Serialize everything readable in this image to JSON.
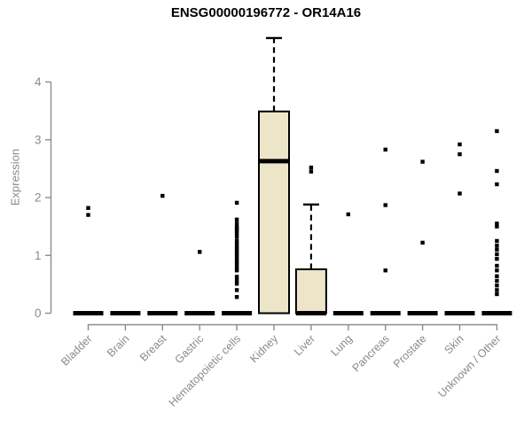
{
  "page": {
    "title": "ENSG00000196772 - OR14A16",
    "ylabel": "Expression"
  },
  "chart_data": {
    "type": "boxplot",
    "title": "ENSG00000196772 - OR14A16",
    "xlabel": "",
    "ylabel": "Expression",
    "ylim": [
      0,
      4
    ],
    "yticks": [
      0,
      1,
      2,
      3,
      4
    ],
    "grid": false,
    "legend": false,
    "colors": {
      "box_fill": "#ECE5C8",
      "box_border": "#000000",
      "median": "#000000",
      "whisker": "#000000",
      "outlier": "#000000",
      "axis": "#8C8C8C",
      "tick_text": "#8A8A8A",
      "title_text": "#000000"
    },
    "categories": [
      "Bladder",
      "Brain",
      "Breast",
      "Gastric",
      "Hematopoietic cells",
      "Kidney",
      "Liver",
      "Lung",
      "Pancreas",
      "Prostate",
      "Skin",
      "Unknown / Other"
    ],
    "series": [
      {
        "category": "Bladder",
        "q1": 0,
        "median": 0,
        "q3": 0,
        "whisker_low": 0,
        "whisker_high": 0,
        "outliers": [
          1.82,
          1.7
        ]
      },
      {
        "category": "Brain",
        "q1": 0,
        "median": 0,
        "q3": 0,
        "whisker_low": 0,
        "whisker_high": 0,
        "outliers": []
      },
      {
        "category": "Breast",
        "q1": 0,
        "median": 0,
        "q3": 0,
        "whisker_low": 0,
        "whisker_high": 0,
        "outliers": [
          2.03
        ]
      },
      {
        "category": "Gastric",
        "q1": 0,
        "median": 0,
        "q3": 0,
        "whisker_low": 0,
        "whisker_high": 0,
        "outliers": [
          1.06
        ]
      },
      {
        "category": "Hematopoietic cells",
        "q1": 0,
        "median": 0,
        "q3": 0,
        "whisker_low": 0,
        "whisker_high": 0,
        "outliers": [
          1.91,
          1.62,
          1.55,
          1.49,
          1.46,
          1.43,
          1.38,
          1.32,
          1.25,
          1.2,
          1.15,
          1.11,
          1.06,
          1.02,
          0.97,
          0.92,
          0.88,
          0.83,
          0.78,
          0.74,
          0.63,
          0.57,
          0.51,
          0.4,
          0.28
        ]
      },
      {
        "category": "Kidney",
        "q1": 0,
        "median": 2.63,
        "q3": 3.49,
        "whisker_low": 0,
        "whisker_high": 4.76,
        "outliers": []
      },
      {
        "category": "Liver",
        "q1": 0,
        "median": 0,
        "q3": 0.76,
        "whisker_low": 0,
        "whisker_high": 1.88,
        "outliers": [
          2.52,
          2.45
        ]
      },
      {
        "category": "Lung",
        "q1": 0,
        "median": 0,
        "q3": 0,
        "whisker_low": 0,
        "whisker_high": 0,
        "outliers": [
          1.71
        ]
      },
      {
        "category": "Pancreas",
        "q1": 0,
        "median": 0,
        "q3": 0,
        "whisker_low": 0,
        "whisker_high": 0,
        "outliers": [
          2.83,
          1.87,
          0.74
        ]
      },
      {
        "category": "Prostate",
        "q1": 0,
        "median": 0,
        "q3": 0,
        "whisker_low": 0,
        "whisker_high": 0,
        "outliers": [
          2.62,
          1.22
        ]
      },
      {
        "category": "Skin",
        "q1": 0,
        "median": 0,
        "q3": 0,
        "whisker_low": 0,
        "whisker_high": 0,
        "outliers": [
          2.92,
          2.75,
          2.07
        ]
      },
      {
        "category": "Unknown / Other",
        "q1": 0,
        "median": 0,
        "q3": 0,
        "whisker_low": 0,
        "whisker_high": 0,
        "outliers": [
          3.15,
          2.46,
          2.23,
          1.55,
          1.5,
          1.25,
          1.17,
          1.1,
          1.02,
          0.94,
          0.82,
          0.74,
          0.64,
          0.56,
          0.48,
          0.4,
          0.33
        ]
      }
    ]
  }
}
